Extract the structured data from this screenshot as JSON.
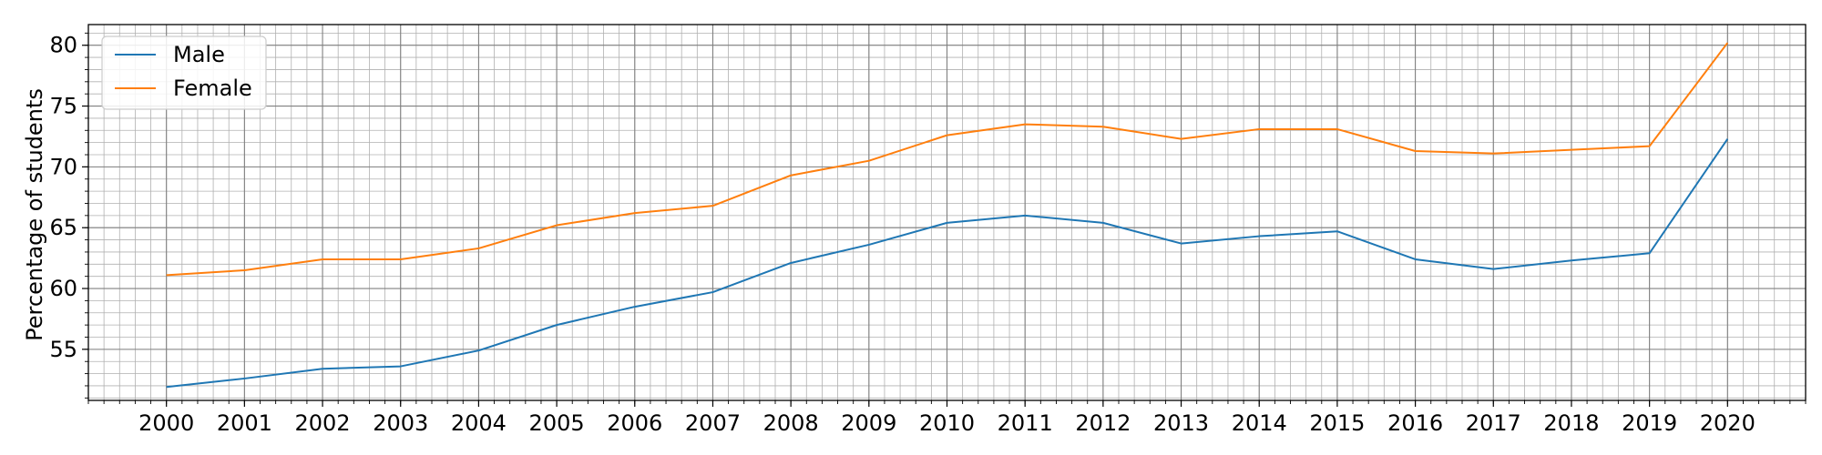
{
  "chart_data": {
    "type": "line",
    "title": "",
    "xlabel": "",
    "ylabel": "Percentage of students",
    "x": [
      2000,
      2001,
      2002,
      2003,
      2004,
      2005,
      2006,
      2007,
      2008,
      2009,
      2010,
      2011,
      2012,
      2013,
      2014,
      2015,
      2016,
      2017,
      2018,
      2019,
      2020
    ],
    "xlim": [
      1999,
      2021
    ],
    "ylim": [
      50.8,
      81.7
    ],
    "yticks": [
      55,
      60,
      65,
      70,
      75,
      80
    ],
    "grid": true,
    "minor_grid": true,
    "legend_position": "top-left",
    "series": [
      {
        "name": "Male",
        "color": "#1f77b4",
        "values": [
          51.9,
          52.6,
          53.4,
          53.6,
          54.9,
          57.0,
          58.5,
          59.7,
          62.1,
          63.6,
          65.4,
          66.0,
          65.4,
          63.7,
          64.3,
          64.7,
          62.4,
          61.6,
          62.3,
          62.9,
          72.3
        ]
      },
      {
        "name": "Female",
        "color": "#ff7f0e",
        "values": [
          61.1,
          61.5,
          62.4,
          62.4,
          63.3,
          65.2,
          66.2,
          66.8,
          69.3,
          70.5,
          72.6,
          73.5,
          73.3,
          72.3,
          73.1,
          73.1,
          71.3,
          71.1,
          71.4,
          71.7,
          80.2
        ]
      }
    ]
  }
}
